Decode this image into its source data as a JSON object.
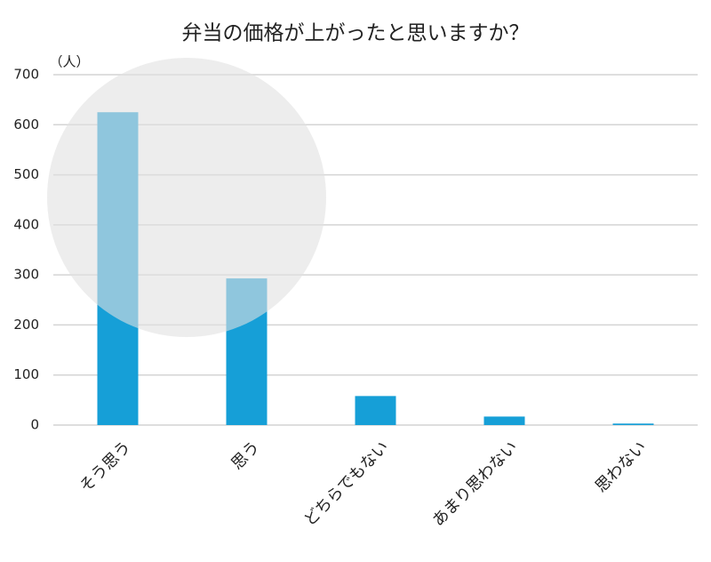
{
  "chart_data": {
    "type": "bar",
    "title": "弁当の価格が上がったと思いますか？",
    "y_label": "（人）",
    "categories": [
      "そう思う",
      "思う",
      "どちらでもない",
      "あまり思わない",
      "思わない"
    ],
    "values": [
      625,
      293,
      58,
      17,
      3
    ],
    "color": "#169fd7",
    "ylim": [
      0,
      700
    ],
    "yticks": [
      0,
      100,
      200,
      300,
      400,
      500,
      600,
      700
    ],
    "grid": true
  }
}
